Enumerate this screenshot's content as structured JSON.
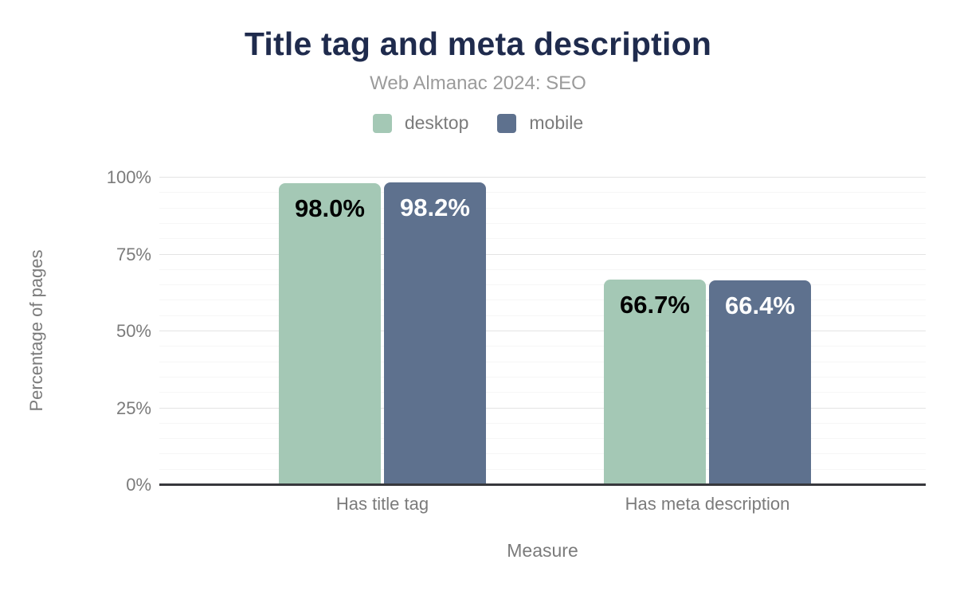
{
  "title": "Title tag and meta description",
  "subtitle": "Web Almanac 2024: SEO",
  "colors": {
    "title_text": "#1f2b4d",
    "muted_text": "#7b7b7b",
    "subtitle_text": "#9b9b9b",
    "axis_line": "#37383c",
    "major_gridline": "#e4e4e4",
    "minor_gridline": "#f6f6f6",
    "desktop": "#a4c8b5",
    "mobile": "#5e718e"
  },
  "chart_data": {
    "type": "bar",
    "title": "Title tag and meta description",
    "subtitle": "Web Almanac 2024: SEO",
    "categories": [
      "Has title tag",
      "Has meta description"
    ],
    "series": [
      {
        "name": "desktop",
        "color": "#a4c8b5",
        "label_color": "#000000",
        "values": [
          98.0,
          66.7
        ],
        "value_labels": [
          "98.0%",
          "66.7%"
        ]
      },
      {
        "name": "mobile",
        "color": "#5e718e",
        "label_color": "#ffffff",
        "values": [
          98.2,
          66.4
        ],
        "value_labels": [
          "98.2%",
          "66.4%"
        ]
      }
    ],
    "xlabel": "Measure",
    "ylabel": "Percentage of pages",
    "ylim": [
      0,
      100
    ],
    "yticks": [
      {
        "value": 0,
        "label": "0%"
      },
      {
        "value": 25,
        "label": "25%"
      },
      {
        "value": 50,
        "label": "50%"
      },
      {
        "value": 75,
        "label": "75%"
      },
      {
        "value": 100,
        "label": "100%"
      }
    ],
    "minor_grid_step": 5,
    "grid": true,
    "legend_position": "top"
  }
}
